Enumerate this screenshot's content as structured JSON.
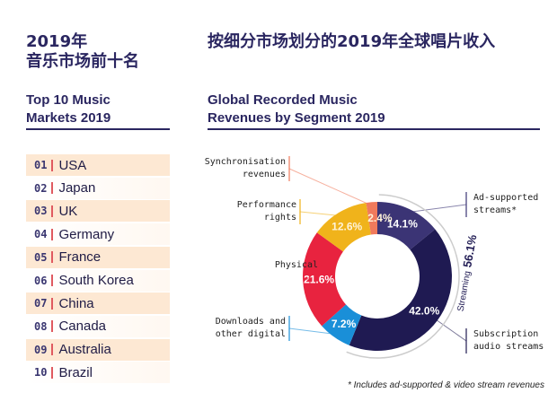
{
  "left": {
    "title_zh": [
      "2019年",
      "音乐市场前十名"
    ],
    "title_en": [
      "Top 10 Music",
      "Markets 2019"
    ],
    "markets": [
      {
        "rank": "01",
        "country": "USA"
      },
      {
        "rank": "02",
        "country": "Japan"
      },
      {
        "rank": "03",
        "country": "UK"
      },
      {
        "rank": "04",
        "country": "Germany"
      },
      {
        "rank": "05",
        "country": "France"
      },
      {
        "rank": "06",
        "country": "South Korea"
      },
      {
        "rank": "07",
        "country": "China"
      },
      {
        "rank": "08",
        "country": "Canada"
      },
      {
        "rank": "09",
        "country": "Australia"
      },
      {
        "rank": "10",
        "country": "Brazil"
      }
    ]
  },
  "chart_data": {
    "type": "pie",
    "title_zh": "按细分市场划分的2019年全球唱片收入",
    "title": [
      "Global Recorded Music",
      "Revenues by Segment 2019"
    ],
    "unit": "%",
    "slices": [
      {
        "label": [
          "Ad-supported",
          "streams*"
        ],
        "value": 14.1,
        "display": "14.1%",
        "color": "#3b3475"
      },
      {
        "label": [
          "Subscription",
          "audio streams"
        ],
        "value": 42.0,
        "display": "42.0%",
        "color": "#1f1a52"
      },
      {
        "label": [
          "Downloads and",
          "other digital"
        ],
        "value": 7.2,
        "display": "7.2%",
        "color": "#1a8fd8"
      },
      {
        "label": [
          "Physical"
        ],
        "value": 21.6,
        "display": "21.6%",
        "color": "#e8233f"
      },
      {
        "label": [
          "Performance",
          "rights"
        ],
        "value": 12.6,
        "display": "12.6%",
        "color": "#f0b31b"
      },
      {
        "label": [
          "Synchronisation",
          "revenues"
        ],
        "value": 2.4,
        "display": "2.4%",
        "color": "#f07a5c"
      }
    ],
    "group_annotation": {
      "label": "Streaming",
      "value": "56.1%"
    },
    "footnote": "* Includes ad-supported & video stream revenues"
  }
}
